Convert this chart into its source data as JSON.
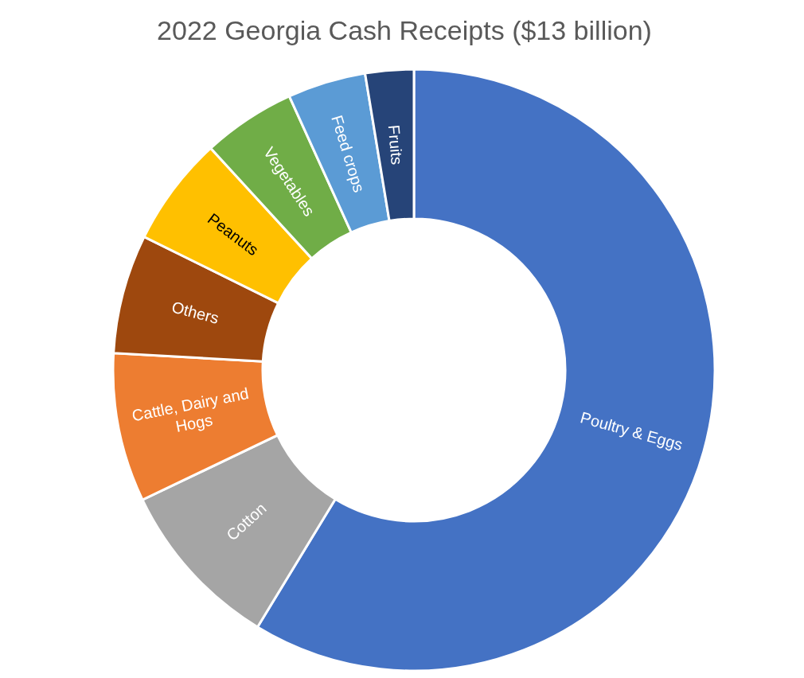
{
  "chart_data": {
    "type": "donut",
    "title": "2022 Georgia Cash Receipts ($13 billion)",
    "categories": [
      "Poultry & Eggs",
      "Cotton",
      "Cattle, Dairy and Hogs",
      "Others",
      "Peanuts",
      "Vegetables",
      "Feed crops",
      "Fruits"
    ],
    "values": [
      58.7,
      9.2,
      8.0,
      6.4,
      5.9,
      5.0,
      4.2,
      2.6
    ],
    "colors": [
      "#4472c4",
      "#a5a5a5",
      "#ed7d31",
      "#9e480e",
      "#ffc000",
      "#70ad47",
      "#5b9bd5",
      "#264478"
    ],
    "legend": false
  }
}
